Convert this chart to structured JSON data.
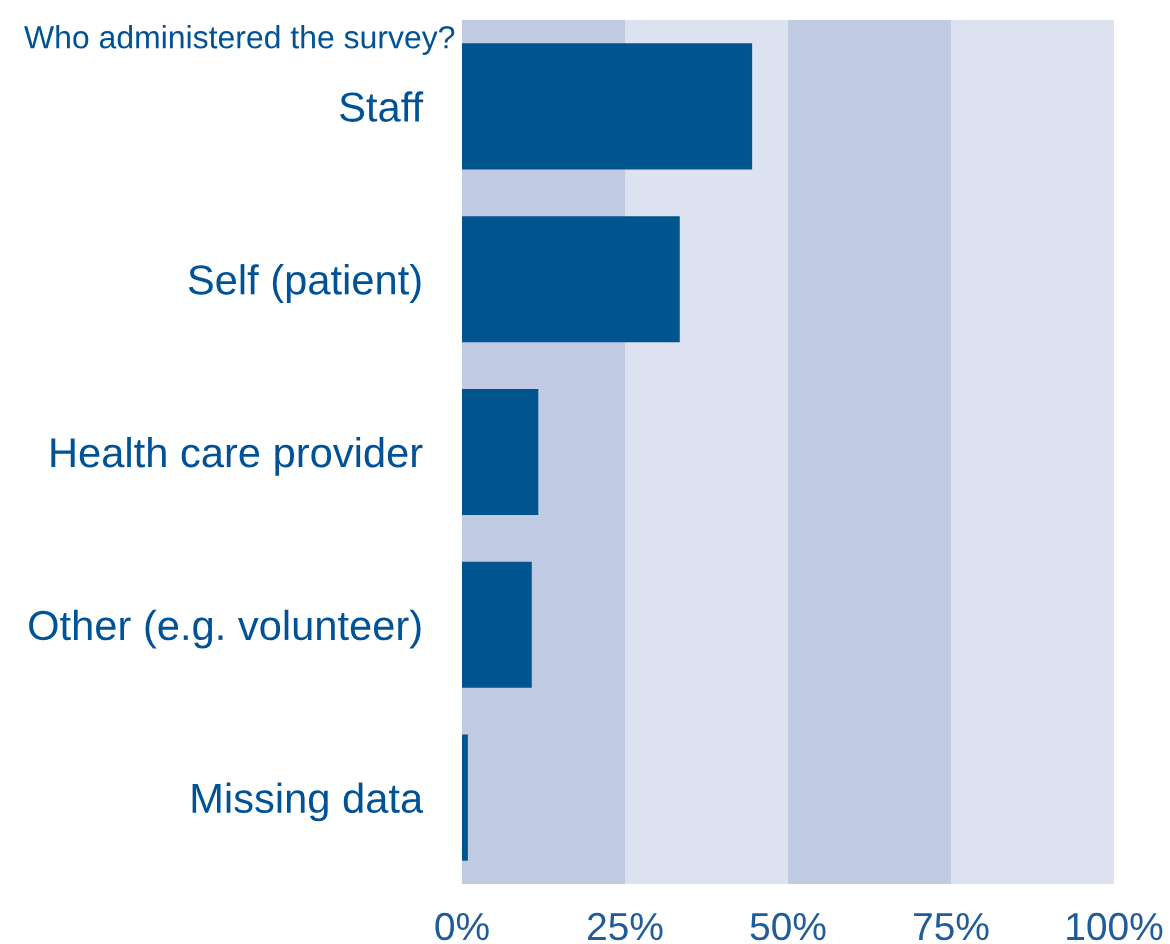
{
  "chart_data": {
    "type": "bar",
    "orientation": "horizontal",
    "title": "Who administered the survey?",
    "categories": [
      "Staff",
      "Self (patient)",
      "Health care provider",
      "Other (e.g. volunteer)",
      "Missing data"
    ],
    "values": [
      44.5,
      33.4,
      11.7,
      10.7,
      0.9
    ],
    "color": "#00558f",
    "xlim": [
      0,
      100
    ],
    "xticks": [
      {
        "value": 0,
        "label": "0%"
      },
      {
        "value": 25,
        "label": "25%"
      },
      {
        "value": 50,
        "label": "50%"
      },
      {
        "value": 75,
        "label": "75%"
      },
      {
        "value": 100,
        "label": "100%"
      }
    ],
    "bands": [
      {
        "axis": "x",
        "from": 0,
        "to": 25,
        "color": "#c0cbe3"
      },
      {
        "axis": "x",
        "from": 25,
        "to": 50,
        "color": "#dde2f1"
      },
      {
        "axis": "x",
        "from": 50,
        "to": 75,
        "color": "#c0cbe3"
      },
      {
        "axis": "x",
        "from": 75,
        "to": 100,
        "color": "#dde2f1"
      }
    ],
    "grid": false,
    "legend": false
  }
}
